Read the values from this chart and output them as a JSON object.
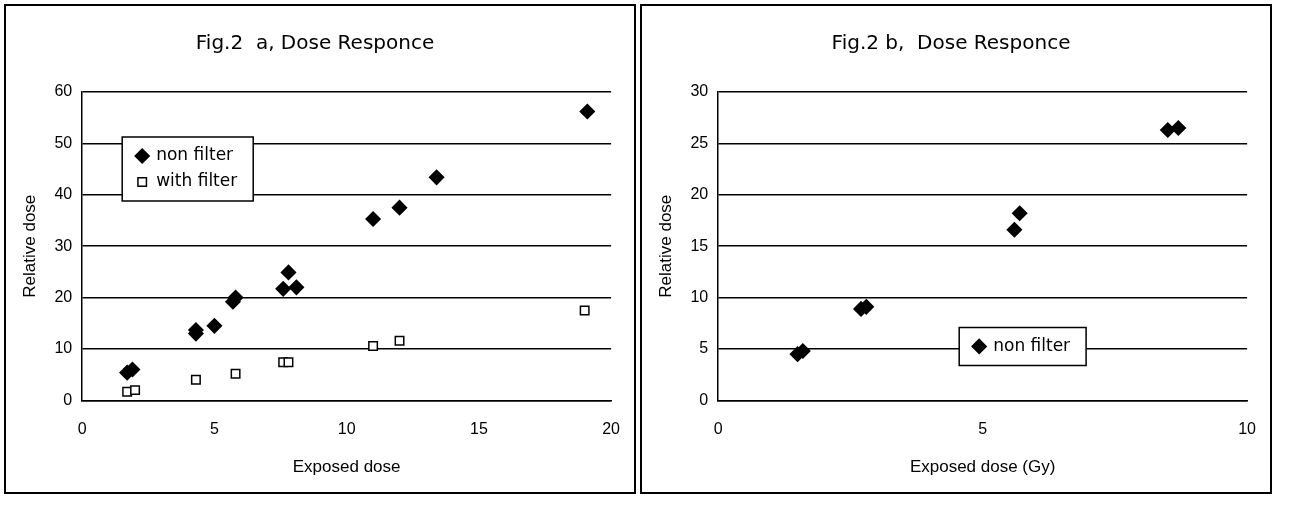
{
  "chart_data": [
    {
      "type": "scatter",
      "title": "Fig.2  a, Dose Responce",
      "xlabel": "Exposed dose",
      "ylabel": "Relative dose",
      "xlim": [
        0,
        20
      ],
      "xticks": [
        0,
        5,
        10,
        15,
        20
      ],
      "ylim": [
        0,
        60
      ],
      "yticks": [
        0,
        10,
        20,
        30,
        40,
        50,
        60
      ],
      "grid": "y",
      "legend": "top left",
      "series": [
        {
          "name": "non filter",
          "color": "#000000",
          "marker": "diamond",
          "x": [
            1.7,
            1.9,
            4.3,
            4.3,
            5.0,
            5.7,
            5.8,
            7.6,
            7.8,
            8.1,
            11.0,
            12.0,
            13.4,
            19.1
          ],
          "values": [
            5.4,
            6.0,
            13.0,
            13.7,
            14.5,
            19.2,
            20.0,
            21.7,
            24.9,
            22.0,
            35.3,
            37.5,
            43.4,
            56.2
          ]
        },
        {
          "name": "with filter",
          "color": "#000000",
          "marker": "square",
          "x": [
            1.7,
            2.0,
            4.3,
            5.8,
            7.6,
            7.8,
            11.0,
            12.0,
            19.0
          ],
          "values": [
            1.7,
            2.0,
            4.0,
            5.2,
            7.4,
            7.4,
            10.6,
            11.6,
            17.5
          ]
        }
      ]
    },
    {
      "type": "scatter",
      "title": "Fig.2 b,  Dose Responce",
      "xlabel": "Exposed dose (Gy)",
      "ylabel": "Relative dose",
      "xlim": [
        0,
        10
      ],
      "xticks": [
        0,
        5,
        10
      ],
      "ylim": [
        0,
        30
      ],
      "yticks": [
        0,
        5,
        10,
        15,
        20,
        25,
        30
      ],
      "grid": "y",
      "legend": "bottom",
      "series": [
        {
          "name": "non filter",
          "color": "#000000",
          "marker": "diamond",
          "x": [
            1.5,
            1.6,
            2.7,
            2.8,
            5.6,
            5.7,
            8.5,
            8.7
          ],
          "values": [
            4.5,
            4.8,
            8.9,
            9.1,
            16.6,
            18.2,
            26.3,
            26.5
          ]
        }
      ]
    }
  ]
}
